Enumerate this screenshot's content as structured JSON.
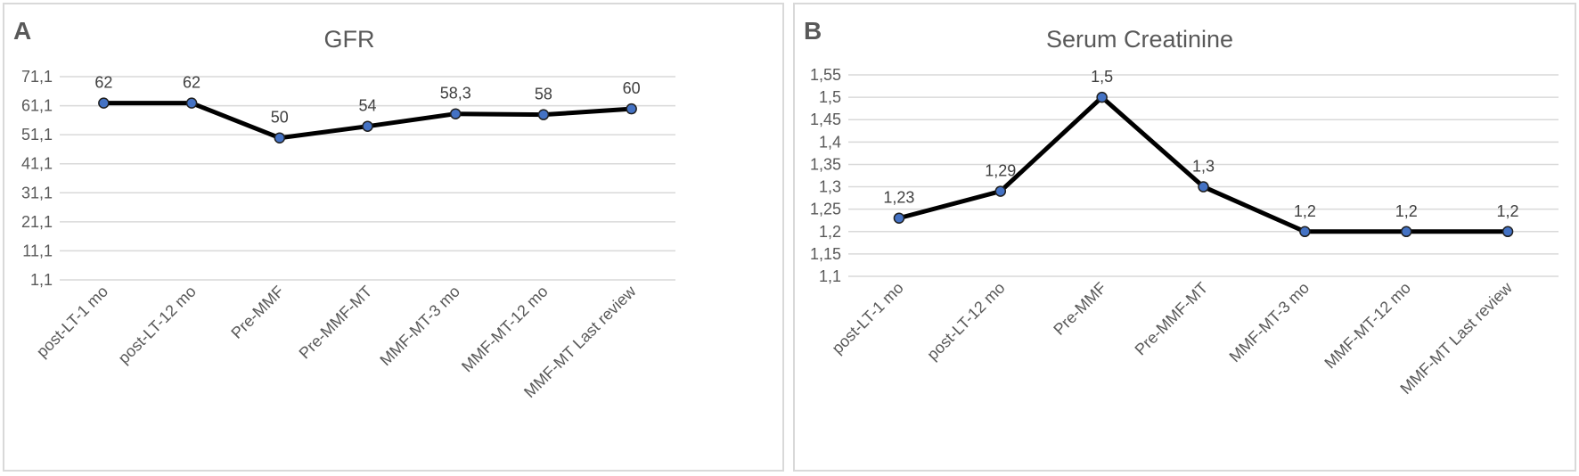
{
  "panels": [
    {
      "letter": "A"
    },
    {
      "letter": "B"
    }
  ],
  "chart_data": [
    {
      "type": "line",
      "title": "GFR",
      "xlabel": "",
      "ylabel": "",
      "categories": [
        "post-LT-1 mo",
        "post-LT-12 mo",
        "Pre-MMF",
        "Pre-MMF-MT",
        "MMF-MT-3 mo",
        "MMF-MT-12 mo",
        "MMF-MT Last review"
      ],
      "values": [
        62,
        62,
        50,
        54,
        58.3,
        58,
        60
      ],
      "data_labels": [
        "62",
        "62",
        "50",
        "54",
        "58,3",
        "58",
        "60"
      ],
      "ylim": [
        1.1,
        71.1
      ],
      "yticks": [
        "1,1",
        "11,1",
        "21,1",
        "31,1",
        "41,1",
        "51,1",
        "61,1",
        "71,1"
      ],
      "grid": true,
      "colors": {
        "line": "#000000",
        "marker": "#4472c4"
      }
    },
    {
      "type": "line",
      "title": "Serum Creatinine",
      "xlabel": "",
      "ylabel": "",
      "categories": [
        "post-LT-1 mo",
        "post-LT-12 mo",
        "Pre-MMF",
        "Pre-MMF-MT",
        "MMF-MT-3 mo",
        "MMF-MT-12 mo",
        "MMF-MT Last review"
      ],
      "values": [
        1.23,
        1.29,
        1.5,
        1.3,
        1.2,
        1.2,
        1.2
      ],
      "data_labels": [
        "1,23",
        "1,29",
        "1,5",
        "1,3",
        "1,2",
        "1,2",
        "1,2"
      ],
      "ylim": [
        1.1,
        1.55
      ],
      "yticks": [
        "1,1",
        "1,15",
        "1,2",
        "1,25",
        "1,3",
        "1,35",
        "1,4",
        "1,45",
        "1,5",
        "1,55"
      ],
      "grid": true,
      "colors": {
        "line": "#000000",
        "marker": "#4472c4"
      }
    }
  ]
}
